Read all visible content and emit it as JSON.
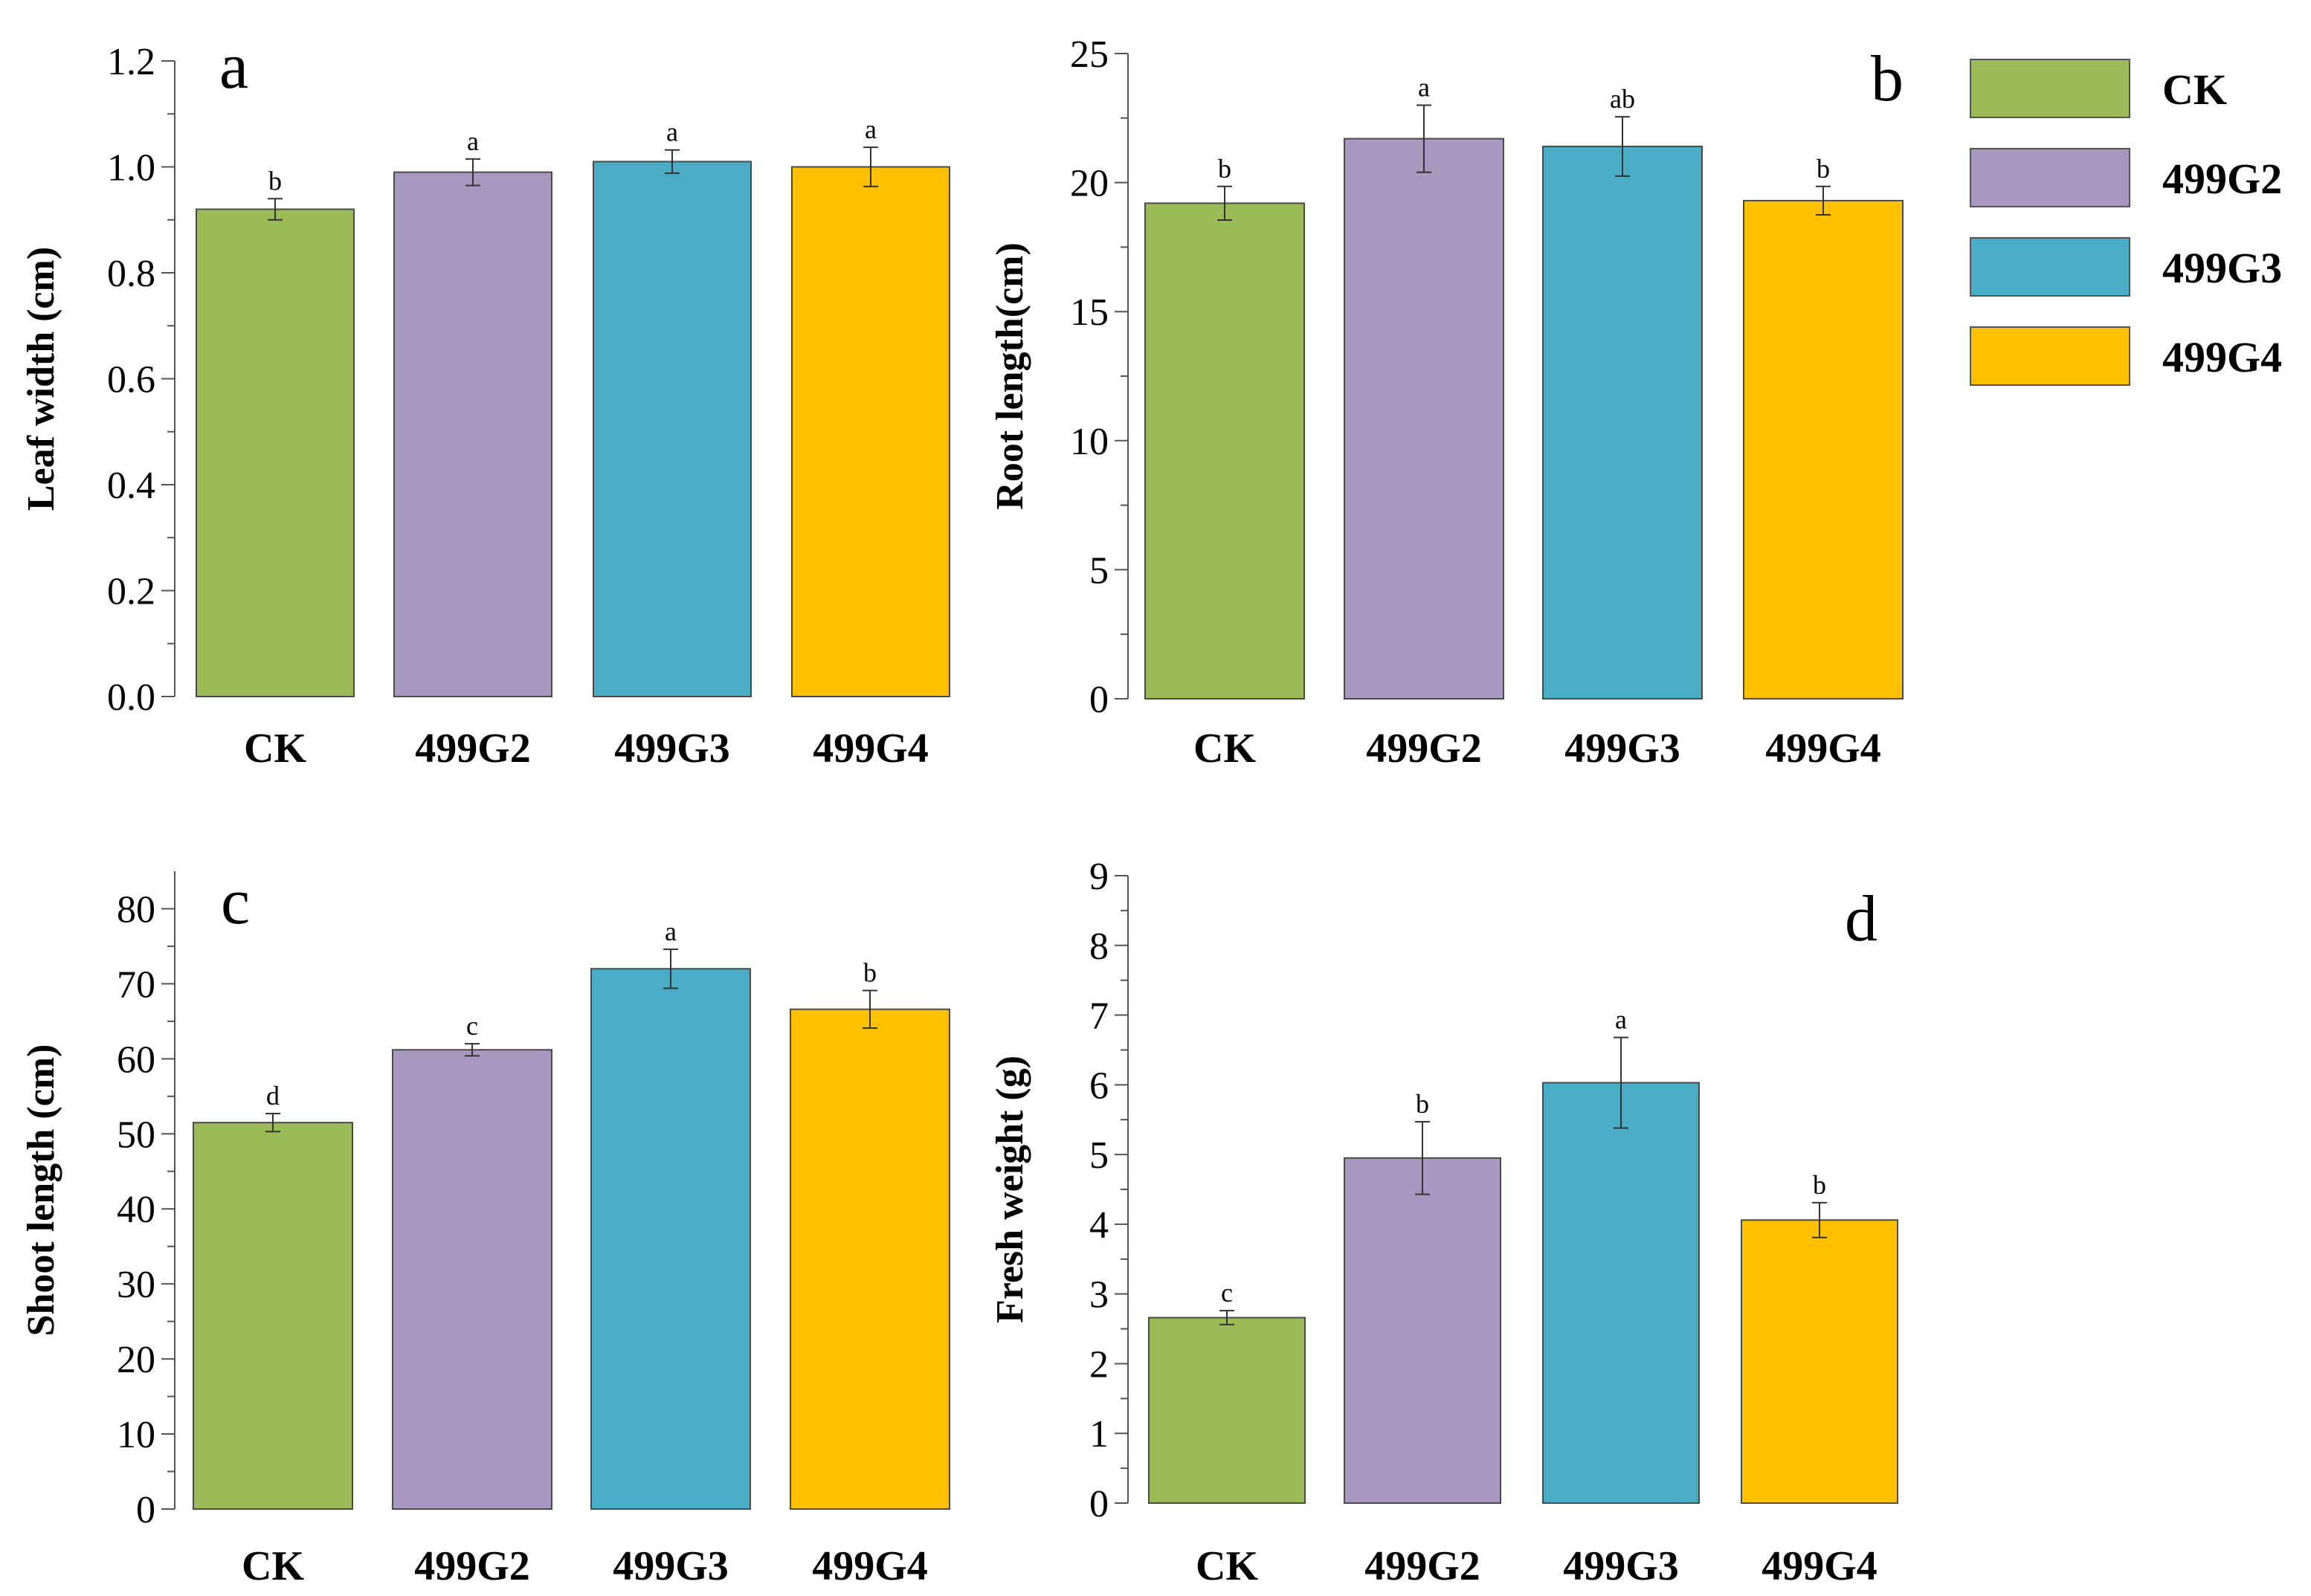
{
  "colors": {
    "CK": "#9BBB59",
    "499G2": "#A897BE",
    "499G3": "#4BACC6",
    "499G4": "#FFC000"
  },
  "legend": [
    "CK",
    "499G2",
    "499G3",
    "499G4"
  ],
  "chart_data": [
    {
      "type": "bar",
      "panel": "a",
      "categories": [
        "CK",
        "499G2",
        "499G3",
        "499G4"
      ],
      "values": [
        0.92,
        0.99,
        1.01,
        1.0
      ],
      "errors": [
        0.02,
        0.025,
        0.022,
        0.037
      ],
      "significance": [
        "b",
        "a",
        "a",
        "a"
      ],
      "ylabel": "Leaf width (cm)",
      "ylim": [
        0,
        1.2
      ],
      "yticks": [
        0.0,
        0.2,
        0.4,
        0.6,
        0.8,
        1.0,
        1.2
      ],
      "ytick_labels": [
        "0.0",
        "0.2",
        "0.4",
        "0.6",
        "0.8",
        "1.0",
        "1.2"
      ],
      "minor_ticks": 1
    },
    {
      "type": "bar",
      "panel": "b",
      "categories": [
        "CK",
        "499G2",
        "499G3",
        "499G4"
      ],
      "values": [
        19.2,
        21.7,
        21.4,
        19.3
      ],
      "errors": [
        0.65,
        1.3,
        1.15,
        0.55
      ],
      "significance": [
        "b",
        "a",
        "ab",
        "b"
      ],
      "ylabel": "Root length(cm)",
      "ylim": [
        0,
        25
      ],
      "yticks": [
        0,
        5,
        10,
        15,
        20,
        25
      ],
      "ytick_labels": [
        "0",
        "5",
        "10",
        "15",
        "20",
        "25"
      ],
      "minor_ticks": 1
    },
    {
      "type": "bar",
      "panel": "c",
      "categories": [
        "CK",
        "499G2",
        "499G3",
        "499G4"
      ],
      "values": [
        51.5,
        61.2,
        72.0,
        66.6
      ],
      "errors": [
        1.2,
        0.8,
        2.6,
        2.5
      ],
      "significance": [
        "d",
        "c",
        "a",
        "b"
      ],
      "ylabel": "Shoot length (cm)",
      "ylim": [
        0,
        85
      ],
      "yticks": [
        0,
        10,
        20,
        30,
        40,
        50,
        60,
        70,
        80
      ],
      "ytick_labels": [
        "0",
        "10",
        "20",
        "30",
        "40",
        "50",
        "60",
        "70",
        "80"
      ],
      "minor_ticks": 1
    },
    {
      "type": "bar",
      "panel": "d",
      "categories": [
        "CK",
        "499G2",
        "499G3",
        "499G4"
      ],
      "values": [
        2.66,
        4.95,
        6.03,
        4.06
      ],
      "errors": [
        0.1,
        0.52,
        0.65,
        0.25
      ],
      "significance": [
        "c",
        "b",
        "a",
        "b"
      ],
      "ylabel": "Fresh weight (g)",
      "ylim": [
        0,
        9
      ],
      "yticks": [
        0,
        1,
        2,
        3,
        4,
        5,
        6,
        7,
        8,
        9
      ],
      "ytick_labels": [
        "0",
        "1",
        "2",
        "3",
        "4",
        "5",
        "6",
        "7",
        "8",
        "9"
      ],
      "minor_ticks": 1
    }
  ]
}
